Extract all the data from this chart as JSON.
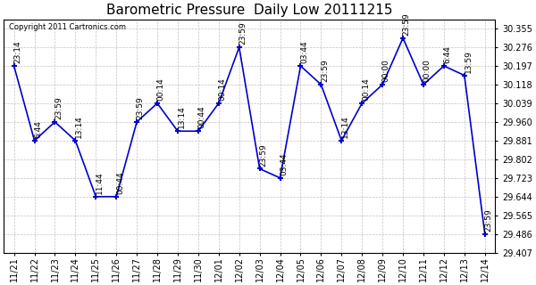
{
  "title": "Barometric Pressure  Daily Low 20111215",
  "copyright": "Copyright 2011 Cartronics.com",
  "x_labels": [
    "11/21",
    "11/22",
    "11/23",
    "11/24",
    "11/25",
    "11/26",
    "11/27",
    "11/28",
    "11/29",
    "11/30",
    "12/01",
    "12/02",
    "12/03",
    "12/04",
    "12/05",
    "12/06",
    "12/07",
    "12/08",
    "12/09",
    "12/10",
    "12/11",
    "12/12",
    "12/13",
    "12/14"
  ],
  "y_values": [
    30.197,
    29.881,
    29.96,
    29.881,
    29.644,
    29.644,
    29.96,
    30.039,
    29.921,
    29.921,
    30.039,
    30.276,
    29.762,
    29.723,
    30.197,
    30.118,
    29.881,
    30.039,
    30.118,
    30.315,
    30.118,
    30.197,
    30.157,
    29.486
  ],
  "point_labels": [
    "23:14",
    "6:44",
    "23:59",
    "13:14",
    "11:44",
    "00:44",
    "23:59",
    "00:14",
    "13:14",
    "00:44",
    "00:14",
    "23:59",
    "23:59",
    "03:44",
    "03:44",
    "23:59",
    "13:14",
    "00:14",
    "00:00",
    "23:59",
    "00:00",
    "6:44",
    "13:59",
    "23:59"
  ],
  "ylim_min": 29.407,
  "ylim_max": 30.394,
  "yticks": [
    29.407,
    29.486,
    29.565,
    29.644,
    29.723,
    29.802,
    29.881,
    29.96,
    30.039,
    30.118,
    30.197,
    30.276,
    30.355
  ],
  "line_color": "#0000cc",
  "marker_color": "#0000cc",
  "bg_color": "#ffffff",
  "grid_color": "#bbbbbb",
  "title_fontsize": 11,
  "tick_fontsize": 7,
  "point_label_fontsize": 6.5
}
